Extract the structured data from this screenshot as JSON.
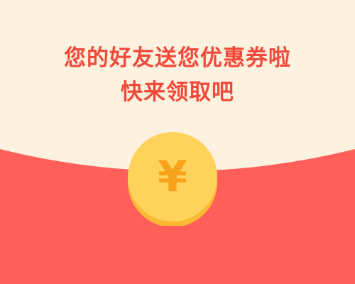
{
  "headline": {
    "line1": "您的好友送您优惠券啦",
    "line2": "快来领取吧"
  },
  "coin": {
    "symbol": "¥",
    "icon": "yuan-coin-icon"
  },
  "colors": {
    "background_cream": "#fdf1e0",
    "envelope_red": "#ff5f59",
    "headline_red": "#f24a3a",
    "coin_face": "#ffd35b",
    "coin_edge": "#fbb934",
    "coin_symbol": "#f7a21b"
  }
}
